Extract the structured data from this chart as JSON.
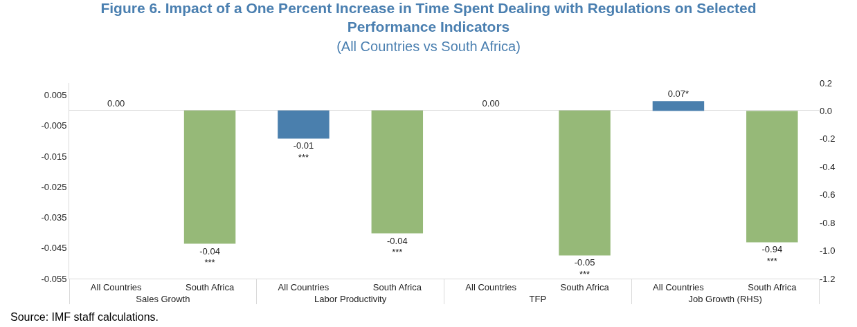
{
  "chart_data": {
    "type": "bar",
    "title": "Figure 6. Impact of a One Percent Increase in Time Spent Dealing with Regulations on Selected\nPerformance Indicators",
    "subtitle": "(All Countries vs South Africa)",
    "categories": [
      "All Countries",
      "South Africa",
      "All Countries",
      "South Africa",
      "All Countries",
      "South Africa",
      "All Countries",
      "South Africa"
    ],
    "series": [
      {
        "values": [
          0,
          -0.0436,
          -0.0092,
          -0.0402,
          0,
          -0.0474,
          null,
          null
        ],
        "colors": [
          "#4a7fad",
          "#96b978",
          "#4a7fad",
          "#96b978",
          "#4a7fad",
          "#96b978",
          "#4a7fad",
          "#96b978"
        ],
        "value_labels": [
          "0.00",
          "-0.04\n***",
          "-0.01\n***",
          "-0.04\n***",
          "0.00",
          "-0.05\n***",
          null,
          null
        ]
      },
      {
        "axis": "y2",
        "values": [
          null,
          null,
          null,
          null,
          null,
          null,
          0.07,
          -0.94
        ],
        "colors": [
          "#4a7fad",
          "#96b978",
          "#4a7fad",
          "#96b978",
          "#4a7fad",
          "#96b978",
          "#4a7fad",
          "#96b978"
        ],
        "value_labels": [
          null,
          null,
          null,
          null,
          null,
          null,
          "0.07*",
          "-0.94\n***"
        ]
      }
    ],
    "ylim": [
      -0.055,
      0.009
    ],
    "yticks": [
      0.005,
      -0.005,
      -0.015,
      -0.025,
      -0.035,
      -0.045,
      -0.055
    ],
    "y2lim": [
      -1.2,
      0.2
    ],
    "y2ticks": [
      0.2,
      {
        "value": 0,
        "label": "0.0"
      },
      -0.2,
      -0.4,
      -0.6,
      -0.8,
      {
        "value": -1,
        "label": "-1.0"
      },
      -1.2
    ],
    "annotations": [
      "Sales Growth",
      "Labor Productivity",
      "TFP",
      "Job Growth (RHS)",
      "Source: IMF staff calculations."
    ]
  }
}
